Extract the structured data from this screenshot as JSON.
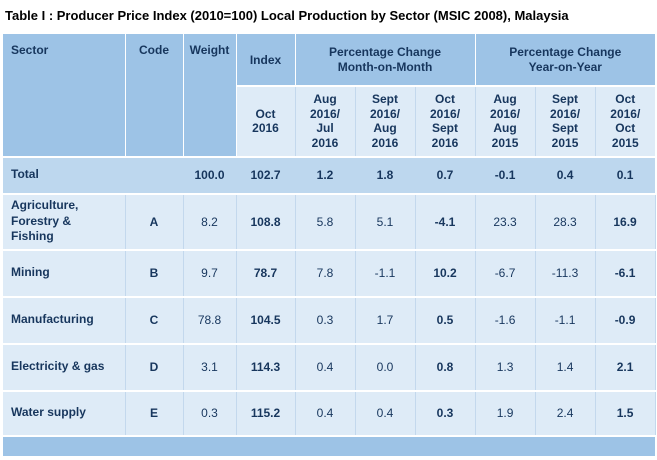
{
  "title": "Table I : Producer Price Index (2010=100) Local Production by Sector (MSIC 2008), Malaysia",
  "colors": {
    "header_blue": "#9DC3E6",
    "subheader_pale_blue": "#DEEBF7",
    "total_row_blue": "#BDD7EE",
    "data_row_pale_blue": "#DEEBF7",
    "footer_band_blue": "#9DC3E6",
    "header_text": "#17365D",
    "title_text": "#000000",
    "grid_vertical": "#C3D8ED",
    "grid_horizontal": "#FFFFFF"
  },
  "table": {
    "headers": {
      "sector": "Sector",
      "code": "Code",
      "weight": "Weight",
      "index": "Index",
      "mom_group": "Percentage Change\nMonth-on-Month",
      "yoy_group": "Percentage Change\nYear-on-Year"
    },
    "subheaders": {
      "index_period": "Oct\n2016",
      "cols": [
        "Aug\n2016/\nJul\n2016",
        "Sept\n2016/\nAug\n2016",
        "Oct\n2016/\nSept\n2016",
        "Aug\n2016/\nAug\n2015",
        "Sept\n2016/\nSept\n2015",
        "Oct\n2016/\nOct\n2015"
      ]
    },
    "rows": [
      {
        "sector": "Total",
        "code": "",
        "weight": "100.0",
        "index": "102.7",
        "mom": [
          "1.2",
          "1.8",
          "0.7"
        ],
        "yoy": [
          "-0.1",
          "0.4",
          "0.1"
        ]
      },
      {
        "sector": "Agriculture,\nForestry &\nFishing",
        "code": "A",
        "weight": "8.2",
        "index": "108.8",
        "mom": [
          "5.8",
          "5.1",
          "-4.1"
        ],
        "yoy": [
          "23.3",
          "28.3",
          "16.9"
        ]
      },
      {
        "sector": "Mining",
        "code": "B",
        "weight": "9.7",
        "index": "78.7",
        "mom": [
          "7.8",
          "-1.1",
          "10.2"
        ],
        "yoy": [
          "-6.7",
          "-11.3",
          "-6.1"
        ]
      },
      {
        "sector": "Manufacturing",
        "code": "C",
        "weight": "78.8",
        "index": "104.5",
        "mom": [
          "0.3",
          "1.7",
          "0.5"
        ],
        "yoy": [
          "-1.6",
          "-1.1",
          "-0.9"
        ]
      },
      {
        "sector": "Electricity & gas",
        "code": "D",
        "weight": "3.1",
        "index": "114.3",
        "mom": [
          "0.4",
          "0.0",
          "0.8"
        ],
        "yoy": [
          "1.3",
          "1.4",
          "2.1"
        ]
      },
      {
        "sector": "Water supply",
        "code": "E",
        "weight": "0.3",
        "index": "115.2",
        "mom": [
          "0.4",
          "0.4",
          "0.3"
        ],
        "yoy": [
          "1.9",
          "2.4",
          "1.5"
        ]
      }
    ]
  }
}
